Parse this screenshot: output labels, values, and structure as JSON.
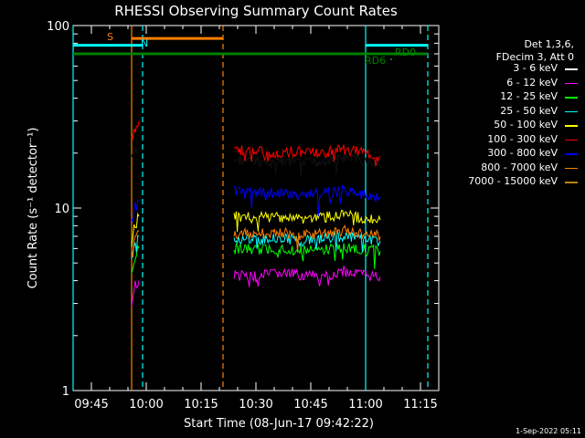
{
  "chart_data": {
    "type": "line",
    "title": "RHESSI Observing Summary Count Rates",
    "xlabel": "Start Time (08-Jun-17 09:42:22)",
    "ylabel": "Count Rate (s⁻¹ detector⁻¹)",
    "x_range": [
      "09:40",
      "11:20"
    ],
    "ylim": [
      1,
      100
    ],
    "yscale": "log",
    "x_ticks": [
      "09:45",
      "10:00",
      "10:15",
      "10:30",
      "10:45",
      "11:00",
      "11:15"
    ],
    "y_ticks": [
      "1",
      "10",
      "100"
    ],
    "legend_header": [
      "Det 1,3,6,",
      "FDecim 3, Att 0"
    ],
    "legend_placement": "right",
    "series": [
      {
        "name": "3 - 6 keV",
        "color": "#000000",
        "segments": [
          {
            "x": [
              "09:56",
              "09:57",
              "09:58"
            ],
            "y": [
              19,
              20,
              21
            ]
          },
          {
            "x": [
              "10:24",
              "10:30",
              "10:36",
              "10:42",
              "10:48",
              "10:54",
              "11:00",
              "11:04"
            ],
            "y": [
              18.5,
              18,
              18,
              17.5,
              18,
              19,
              18,
              17
            ]
          }
        ]
      },
      {
        "name": "6 - 12 keV",
        "color": "#ff00ff",
        "segments": [
          {
            "x": [
              "09:56",
              "09:57",
              "09:58"
            ],
            "y": [
              3,
              3.8,
              4
            ]
          },
          {
            "x": [
              "10:24",
              "10:30",
              "10:36",
              "10:42",
              "10:48",
              "10:54",
              "11:00",
              "11:04"
            ],
            "y": [
              4.3,
              4.2,
              4.4,
              4.3,
              4.2,
              4.5,
              4.3,
              4.2
            ]
          }
        ]
      },
      {
        "name": "12 - 25 keV",
        "color": "#00ff00",
        "segments": [
          {
            "x": [
              "09:56",
              "09:57",
              "09:58"
            ],
            "y": [
              4.5,
              5.5,
              6
            ]
          },
          {
            "x": [
              "10:24",
              "10:30",
              "10:36",
              "10:42",
              "10:48",
              "10:54",
              "11:00",
              "11:04"
            ],
            "y": [
              6,
              5.9,
              6,
              5.8,
              5.9,
              6.1,
              5.9,
              5.8
            ]
          }
        ]
      },
      {
        "name": "25 - 50 keV",
        "color": "#00ffff",
        "segments": [
          {
            "x": [
              "09:56",
              "09:57",
              "09:58"
            ],
            "y": [
              5.5,
              6.5,
              7
            ]
          },
          {
            "x": [
              "10:24",
              "10:30",
              "10:36",
              "10:42",
              "10:48",
              "10:54",
              "11:00",
              "11:04"
            ],
            "y": [
              6.8,
              6.7,
              6.9,
              6.6,
              6.8,
              7,
              6.7,
              6.6
            ]
          }
        ]
      },
      {
        "name": "50 - 100 keV",
        "color": "#ffff00",
        "segments": [
          {
            "x": [
              "09:56",
              "09:57",
              "09:58"
            ],
            "y": [
              7,
              8,
              9
            ]
          },
          {
            "x": [
              "10:24",
              "10:30",
              "10:36",
              "10:42",
              "10:48",
              "10:54",
              "11:00",
              "11:04"
            ],
            "y": [
              9,
              8.8,
              9,
              8.7,
              8.9,
              9.1,
              8.8,
              8.6
            ]
          }
        ]
      },
      {
        "name": "100 - 300 keV",
        "color": "#ff0000",
        "segments": [
          {
            "x": [
              "09:56",
              "09:57",
              "09:58"
            ],
            "y": [
              24,
              27,
              30
            ]
          },
          {
            "x": [
              "10:24",
              "10:30",
              "10:36",
              "10:42",
              "10:48",
              "10:54",
              "11:00",
              "11:04"
            ],
            "y": [
              21,
              20.5,
              20,
              20.5,
              20,
              21,
              20,
              19
            ]
          }
        ]
      },
      {
        "name": "300 - 800 keV",
        "color": "#0000ff",
        "segments": [
          {
            "x": [
              "09:56",
              "09:57",
              "09:58"
            ],
            "y": [
              9,
              10,
              11
            ]
          },
          {
            "x": [
              "10:24",
              "10:30",
              "10:36",
              "10:42",
              "10:48",
              "10:54",
              "11:00",
              "11:04"
            ],
            "y": [
              12.5,
              12,
              12.2,
              11.8,
              12,
              12.4,
              11.9,
              11.5
            ]
          }
        ]
      },
      {
        "name": "800 - 7000 keV",
        "color": "#ff8000",
        "segments": [
          {
            "x": [
              "09:56",
              "09:57",
              "09:58"
            ],
            "y": [
              6,
              7,
              7.5
            ]
          },
          {
            "x": [
              "10:24",
              "10:30",
              "10:36",
              "10:42",
              "10:48",
              "10:54",
              "11:00",
              "11:04"
            ],
            "y": [
              7.3,
              7.2,
              7.4,
              7.1,
              7.3,
              7.5,
              7.2,
              7
            ]
          }
        ]
      },
      {
        "name": "7000 - 15000 keV",
        "color": "#b8860b",
        "segments": []
      }
    ],
    "markers": {
      "flags": [
        {
          "label": "S",
          "color": "#ff8000",
          "level": 85,
          "start": "09:56",
          "end": "10:21"
        },
        {
          "label": "N",
          "color": "#00ffff",
          "level": 78,
          "start": "09:40",
          "end": "09:59"
        },
        {
          "label": "",
          "color": "#00ffff",
          "level": 78,
          "start": "11:00",
          "end": "11:17"
        },
        {
          "label": "RD0",
          "color": "#008000",
          "level": 70,
          "start": "09:40",
          "end": "11:17"
        },
        {
          "label": "RD6",
          "color": "#008000",
          "level": 0,
          "start": "",
          "end": ""
        }
      ],
      "solid_vlines": [
        {
          "x": "09:40",
          "color": "#00ffff"
        },
        {
          "x": "09:56",
          "color": "#ff8000"
        },
        {
          "x": "11:00",
          "color": "#00ffff"
        }
      ],
      "dashed_vlines": [
        {
          "x": "09:59",
          "color": "#00ffff"
        },
        {
          "x": "10:21",
          "color": "#ff8000"
        },
        {
          "x": "11:17",
          "color": "#00ffff"
        }
      ]
    }
  },
  "footer": "1-Sep-2022 05:11"
}
